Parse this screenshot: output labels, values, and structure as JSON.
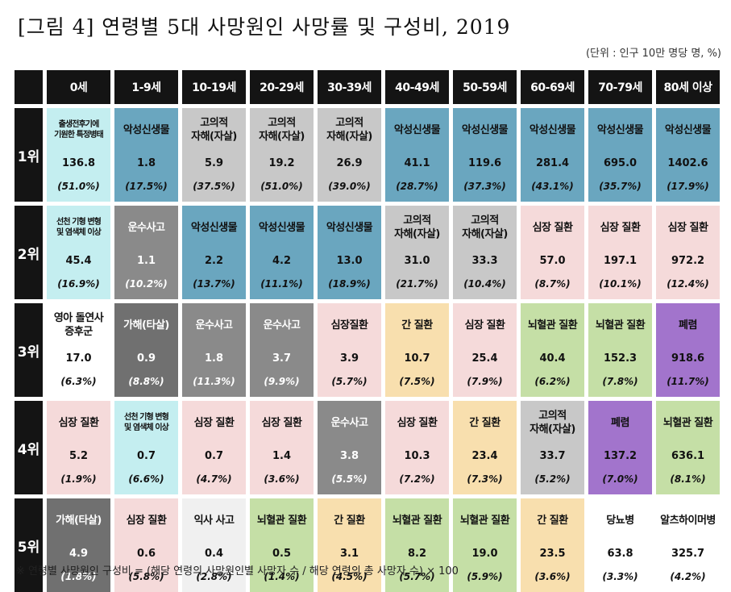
{
  "title": "[그림 4] 연령별 5대 사망원인 사망률 및 구성비, 2019",
  "unit": "(단위 : 인구 10만 명당 명, %)",
  "footnote": "※ 연령별 사망원인 구성비 = (해당 연령의 사망원인별 사망자 수 / 해당 연령의 총 사망자 수) × 100",
  "colors": {
    "malignant_neoplasm": "#6aa6bf",
    "suicide": "#c8c8c8",
    "heart_disease": "#f5dada",
    "transport_accident": "#8a8a8a",
    "assault": "#707070",
    "liver_disease": "#f8dfae",
    "cerebrovascular": "#c5dfa6",
    "pneumonia": "#a274cc",
    "congenital_malformation": "#c4eef0",
    "perinatal_conditions": "#c4eef0",
    "sids": "#ffffff",
    "drowning": "#f0f0f0",
    "diabetes": "#ffffff",
    "alzheimer": "#ffffff"
  },
  "chart_data": {
    "type": "table",
    "title": "[그림 4] 연령별 5대 사망원인 사망률 및 구성비, 2019",
    "columns": [
      "0세",
      "1-9세",
      "10-19세",
      "20-29세",
      "30-39세",
      "40-49세",
      "50-59세",
      "60-69세",
      "70-79세",
      "80세 이상"
    ],
    "ranks": [
      "1위",
      "2위",
      "3위",
      "4위",
      "5위"
    ],
    "rows": [
      [
        {
          "cause": "출생전후기에\n기원한 특정병태",
          "value": "136.8",
          "pct": "(51.0%)",
          "color": "perinatal_conditions",
          "small": true
        },
        {
          "cause": "악성신생물",
          "value": "1.8",
          "pct": "(17.5%)",
          "color": "malignant_neoplasm"
        },
        {
          "cause": "고의적\n자해(자살)",
          "value": "5.9",
          "pct": "(37.5%)",
          "color": "suicide"
        },
        {
          "cause": "고의적\n자해(자살)",
          "value": "19.2",
          "pct": "(51.0%)",
          "color": "suicide"
        },
        {
          "cause": "고의적\n자해(자살)",
          "value": "26.9",
          "pct": "(39.0%)",
          "color": "suicide"
        },
        {
          "cause": "악성신생물",
          "value": "41.1",
          "pct": "(28.7%)",
          "color": "malignant_neoplasm"
        },
        {
          "cause": "악성신생물",
          "value": "119.6",
          "pct": "(37.3%)",
          "color": "malignant_neoplasm"
        },
        {
          "cause": "악성신생물",
          "value": "281.4",
          "pct": "(43.1%)",
          "color": "malignant_neoplasm"
        },
        {
          "cause": "악성신생물",
          "value": "695.0",
          "pct": "(35.7%)",
          "color": "malignant_neoplasm"
        },
        {
          "cause": "악성신생물",
          "value": "1402.6",
          "pct": "(17.9%)",
          "color": "malignant_neoplasm"
        }
      ],
      [
        {
          "cause": "선천 기형 변형\n및 염색체 이상",
          "value": "45.4",
          "pct": "(16.9%)",
          "color": "congenital_malformation",
          "small": true
        },
        {
          "cause": "운수사고",
          "value": "1.1",
          "pct": "(10.2%)",
          "color": "transport_accident"
        },
        {
          "cause": "악성신생물",
          "value": "2.2",
          "pct": "(13.7%)",
          "color": "malignant_neoplasm"
        },
        {
          "cause": "악성신생물",
          "value": "4.2",
          "pct": "(11.1%)",
          "color": "malignant_neoplasm"
        },
        {
          "cause": "악성신생물",
          "value": "13.0",
          "pct": "(18.9%)",
          "color": "malignant_neoplasm"
        },
        {
          "cause": "고의적\n자해(자살)",
          "value": "31.0",
          "pct": "(21.7%)",
          "color": "suicide"
        },
        {
          "cause": "고의적\n자해(자살)",
          "value": "33.3",
          "pct": "(10.4%)",
          "color": "suicide"
        },
        {
          "cause": "심장 질환",
          "value": "57.0",
          "pct": "(8.7%)",
          "color": "heart_disease"
        },
        {
          "cause": "심장 질환",
          "value": "197.1",
          "pct": "(10.1%)",
          "color": "heart_disease"
        },
        {
          "cause": "심장 질환",
          "value": "972.2",
          "pct": "(12.4%)",
          "color": "heart_disease"
        }
      ],
      [
        {
          "cause": "영아 돌연사\n증후군",
          "value": "17.0",
          "pct": "(6.3%)",
          "color": "sids"
        },
        {
          "cause": "가해(타살)",
          "value": "0.9",
          "pct": "(8.8%)",
          "color": "assault"
        },
        {
          "cause": "운수사고",
          "value": "1.8",
          "pct": "(11.3%)",
          "color": "transport_accident"
        },
        {
          "cause": "운수사고",
          "value": "3.7",
          "pct": "(9.9%)",
          "color": "transport_accident"
        },
        {
          "cause": "심장질환",
          "value": "3.9",
          "pct": "(5.7%)",
          "color": "heart_disease"
        },
        {
          "cause": "간 질환",
          "value": "10.7",
          "pct": "(7.5%)",
          "color": "liver_disease"
        },
        {
          "cause": "심장 질환",
          "value": "25.4",
          "pct": "(7.9%)",
          "color": "heart_disease"
        },
        {
          "cause": "뇌혈관 질환",
          "value": "40.4",
          "pct": "(6.2%)",
          "color": "cerebrovascular"
        },
        {
          "cause": "뇌혈관 질환",
          "value": "152.3",
          "pct": "(7.8%)",
          "color": "cerebrovascular"
        },
        {
          "cause": "폐렴",
          "value": "918.6",
          "pct": "(11.7%)",
          "color": "pneumonia"
        }
      ],
      [
        {
          "cause": "심장 질환",
          "value": "5.2",
          "pct": "(1.9%)",
          "color": "heart_disease"
        },
        {
          "cause": "선천 기형 변형\n및 염색체 이상",
          "value": "0.7",
          "pct": "(6.6%)",
          "color": "congenital_malformation",
          "small": true
        },
        {
          "cause": "심장 질환",
          "value": "0.7",
          "pct": "(4.7%)",
          "color": "heart_disease"
        },
        {
          "cause": "심장 질환",
          "value": "1.4",
          "pct": "(3.6%)",
          "color": "heart_disease"
        },
        {
          "cause": "운수사고",
          "value": "3.8",
          "pct": "(5.5%)",
          "color": "transport_accident"
        },
        {
          "cause": "심장 질환",
          "value": "10.3",
          "pct": "(7.2%)",
          "color": "heart_disease"
        },
        {
          "cause": "간 질환",
          "value": "23.4",
          "pct": "(7.3%)",
          "color": "liver_disease"
        },
        {
          "cause": "고의적\n자해(자살)",
          "value": "33.7",
          "pct": "(5.2%)",
          "color": "suicide"
        },
        {
          "cause": "폐렴",
          "value": "137.2",
          "pct": "(7.0%)",
          "color": "pneumonia"
        },
        {
          "cause": "뇌혈관 질환",
          "value": "636.1",
          "pct": "(8.1%)",
          "color": "cerebrovascular"
        }
      ],
      [
        {
          "cause": "가해(타살)",
          "value": "4.9",
          "pct": "(1.8%)",
          "color": "assault"
        },
        {
          "cause": "심장 질환",
          "value": "0.6",
          "pct": "(5.8%)",
          "color": "heart_disease"
        },
        {
          "cause": "익사 사고",
          "value": "0.4",
          "pct": "(2.8%)",
          "color": "drowning"
        },
        {
          "cause": "뇌혈관 질환",
          "value": "0.5",
          "pct": "(1.4%)",
          "color": "cerebrovascular"
        },
        {
          "cause": "간 질환",
          "value": "3.1",
          "pct": "(4.5%)",
          "color": "liver_disease"
        },
        {
          "cause": "뇌혈관 질환",
          "value": "8.2",
          "pct": "(5.7%)",
          "color": "cerebrovascular"
        },
        {
          "cause": "뇌혈관 질환",
          "value": "19.0",
          "pct": "(5.9%)",
          "color": "cerebrovascular"
        },
        {
          "cause": "간 질환",
          "value": "23.5",
          "pct": "(3.6%)",
          "color": "liver_disease"
        },
        {
          "cause": "당뇨병",
          "value": "63.8",
          "pct": "(3.3%)",
          "color": "diabetes"
        },
        {
          "cause": "알츠하이머병",
          "value": "325.7",
          "pct": "(4.2%)",
          "color": "alzheimer"
        }
      ]
    ]
  }
}
